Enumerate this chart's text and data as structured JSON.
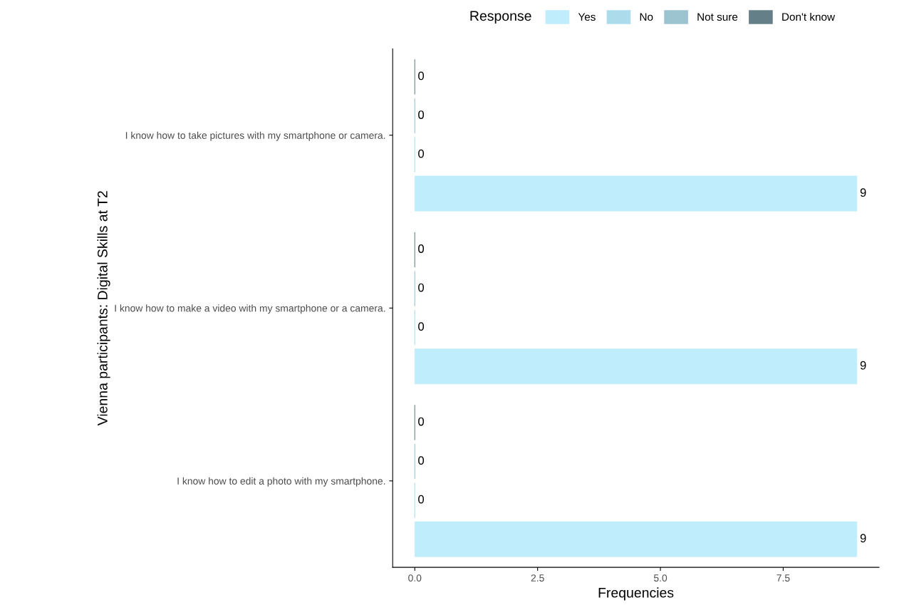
{
  "chart_data": {
    "type": "bar",
    "orientation": "horizontal",
    "ylabel": "Vienna participants: Digital Skills at T2",
    "xlabel": "Frequencies",
    "legend_title": "Response",
    "legend": "top",
    "categories": [
      "I know how to take pictures with my smartphone or camera.",
      "I know how to make a video with my smartphone or a camera.",
      "I know how to edit a photo with my smartphone."
    ],
    "series": [
      {
        "name": "Yes",
        "color": "#bfedfb",
        "values": [
          9,
          9,
          9
        ]
      },
      {
        "name": "No",
        "color": "#acdcec",
        "values": [
          0,
          0,
          0
        ]
      },
      {
        "name": "Not sure",
        "color": "#9bc3d0",
        "values": [
          0,
          0,
          0
        ]
      },
      {
        "name": "Don't know",
        "color": "#657f88",
        "values": [
          0,
          0,
          0
        ]
      }
    ],
    "xlim": [
      -0.45,
      9.45
    ],
    "xticks": [
      {
        "value": 0,
        "label": "0.0"
      },
      {
        "value": 2.5,
        "label": "2.5"
      },
      {
        "value": 5,
        "label": "5.0"
      },
      {
        "value": 7.5,
        "label": "7.5"
      }
    ],
    "data_labels": true,
    "grid": false
  }
}
